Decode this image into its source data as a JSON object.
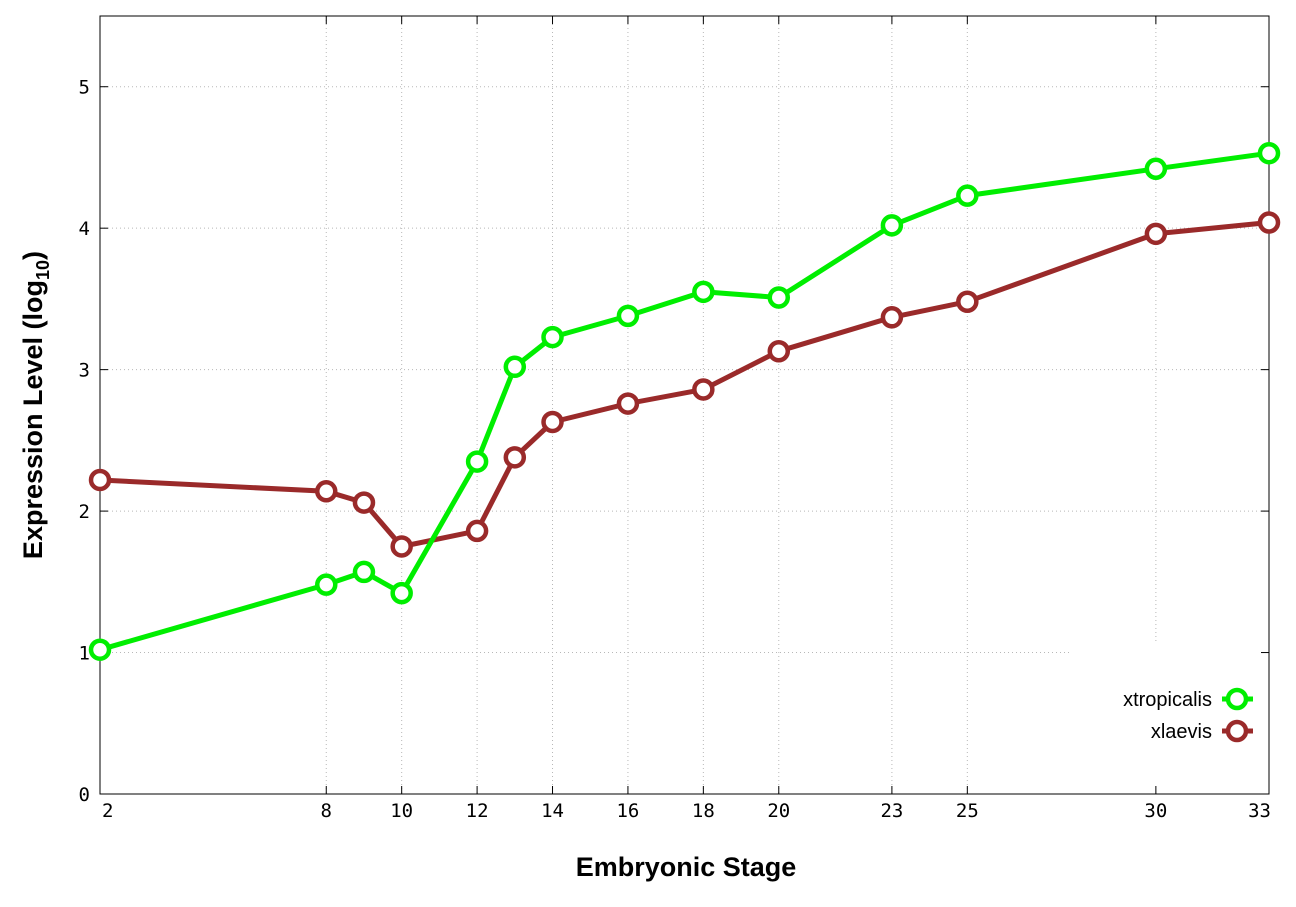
{
  "chart_data": {
    "type": "line",
    "xlabel": "Embryonic Stage",
    "ylabel_main": "Expression Level (log",
    "ylabel_sub": "10",
    "ylabel_close": ")",
    "x": [
      2,
      8,
      9,
      10,
      12,
      13,
      14,
      16,
      18,
      20,
      23,
      25,
      30,
      33
    ],
    "x_ticks": [
      2,
      8,
      10,
      12,
      14,
      16,
      18,
      20,
      23,
      25,
      30,
      33
    ],
    "y_ticks": [
      0,
      1,
      2,
      3,
      4,
      5
    ],
    "xlim": [
      2,
      33
    ],
    "ylim": [
      0,
      5.5
    ],
    "grid": true,
    "legend_position": "bottom-right",
    "series": [
      {
        "name": "xtropicalis",
        "color": "#00ee00",
        "values": [
          1.02,
          1.48,
          1.57,
          1.42,
          2.35,
          3.02,
          3.23,
          3.38,
          3.55,
          3.51,
          4.02,
          4.23,
          4.42,
          4.53
        ]
      },
      {
        "name": "xlaevis",
        "color": "#9a2a2a",
        "values": [
          2.22,
          2.14,
          2.06,
          1.75,
          1.86,
          2.38,
          2.63,
          2.76,
          2.86,
          3.13,
          3.37,
          3.48,
          3.96,
          4.04
        ]
      }
    ]
  }
}
